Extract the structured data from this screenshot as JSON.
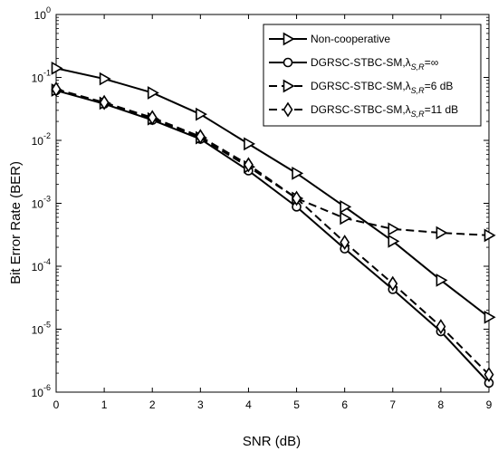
{
  "chart_data": {
    "type": "line",
    "xlabel": "SNR (dB)",
    "ylabel": "Bit Error Rate (BER)",
    "xlim": [
      0,
      9
    ],
    "ylim": [
      1e-06,
      1
    ],
    "yscale": "log",
    "grid": false,
    "legend_position": "top-right",
    "x": [
      0,
      1,
      2,
      3,
      4,
      5,
      6,
      7,
      8,
      9
    ],
    "xticks": [
      "0",
      "1",
      "2",
      "3",
      "4",
      "5",
      "6",
      "7",
      "8",
      "9"
    ],
    "yticks": [
      {
        "base": "10",
        "exp": "0"
      },
      {
        "base": "10",
        "exp": "-1"
      },
      {
        "base": "10",
        "exp": "-2"
      },
      {
        "base": "10",
        "exp": "-3"
      },
      {
        "base": "10",
        "exp": "-4"
      },
      {
        "base": "10",
        "exp": "-5"
      },
      {
        "base": "10",
        "exp": "-6"
      }
    ],
    "series": [
      {
        "name": "Non-cooperative",
        "legend_prefix": "Non-cooperative",
        "legend_sub": "",
        "legend_suffix": "",
        "dash": "solid",
        "marker": "triangle-right",
        "values": [
          0.14,
          0.095,
          0.057,
          0.026,
          0.0088,
          0.003,
          0.00088,
          0.00025,
          6e-05,
          1.55e-05
        ]
      },
      {
        "name": "DGRSC-STBC-SM,λS,R=∞",
        "legend_prefix": "DGRSC-STBC-SM,λ",
        "legend_sub": "S,R",
        "legend_suffix": "=∞",
        "dash": "solid",
        "marker": "circle",
        "values": [
          0.062,
          0.038,
          0.021,
          0.0105,
          0.0033,
          0.00088,
          0.00019,
          4.3e-05,
          9.2e-06,
          1.4e-06
        ]
      },
      {
        "name": "DGRSC-STBC-SM,λS,R=6 dB",
        "legend_prefix": "DGRSC-STBC-SM,λ",
        "legend_sub": "S,R",
        "legend_suffix": "=6 dB",
        "dash": "dashed",
        "marker": "triangle-right",
        "values": [
          0.063,
          0.039,
          0.022,
          0.011,
          0.0038,
          0.0012,
          0.00058,
          0.00039,
          0.00034,
          0.00031
        ]
      },
      {
        "name": "DGRSC-STBC-SM,λS,R=11 dB",
        "legend_prefix": "DGRSC-STBC-SM,λ",
        "legend_sub": "S,R",
        "legend_suffix": "=11 dB",
        "dash": "dashed",
        "marker": "diamond",
        "values": [
          0.065,
          0.04,
          0.023,
          0.0115,
          0.0041,
          0.0012,
          0.00024,
          5.3e-05,
          1.1e-05,
          1.9e-06
        ]
      }
    ]
  }
}
